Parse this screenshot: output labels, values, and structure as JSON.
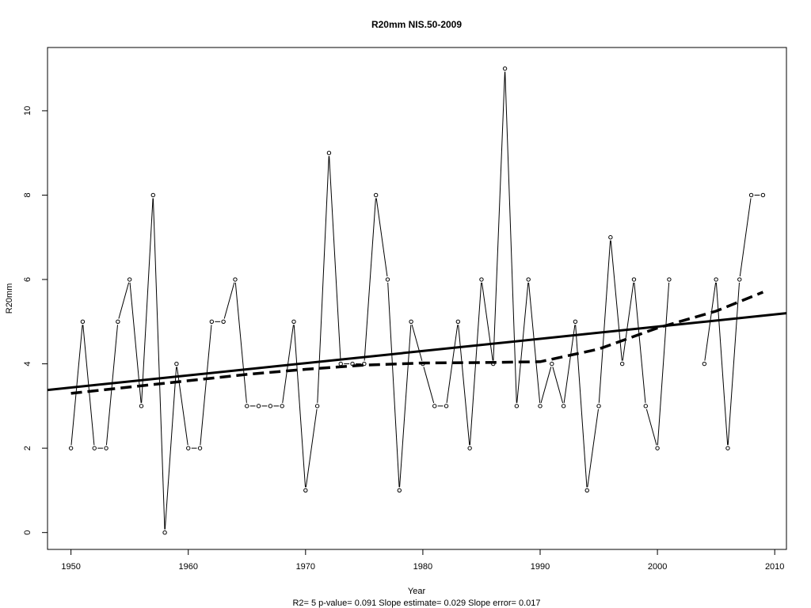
{
  "chart_data": {
    "type": "line",
    "title": "R20mm    NIS.50-2009",
    "xlabel": "Year",
    "ylabel": "R20mm",
    "footer": "R2= 5  p-value= 0.091  Slope estimate= 0.029  Slope error= 0.017",
    "xlim": [
      1948,
      2011
    ],
    "ylim": [
      -0.4,
      11.5
    ],
    "x_ticks": [
      1950,
      1960,
      1970,
      1980,
      1990,
      2000,
      2010
    ],
    "y_ticks": [
      0,
      2,
      4,
      6,
      8,
      10
    ],
    "grid": false,
    "series": [
      {
        "style": "line-with-points",
        "x": [
          1950,
          1951,
          1952,
          1953,
          1954,
          1955,
          1956,
          1957,
          1958,
          1959,
          1960,
          1961,
          1962,
          1963,
          1964,
          1965,
          1966,
          1967,
          1968,
          1969,
          1970,
          1971,
          1972,
          1973,
          1974,
          1975,
          1976,
          1977,
          1978,
          1979,
          1980,
          1981,
          1982,
          1983,
          1984,
          1985,
          1986,
          1987,
          1988,
          1989,
          1990,
          1991,
          1992,
          1993,
          1994,
          1995,
          1996,
          1997,
          1998,
          1999,
          2000,
          2001,
          2002,
          2003,
          2004,
          2005,
          2006,
          2007,
          2008,
          2009
        ],
        "y": [
          2,
          5,
          2,
          2,
          5,
          6,
          3,
          8,
          0,
          4,
          2,
          2,
          5,
          5,
          6,
          3,
          3,
          3,
          3,
          5,
          1,
          3,
          9,
          4,
          4,
          4,
          8,
          6,
          1,
          5,
          4,
          3,
          3,
          5,
          2,
          6,
          4,
          11,
          3,
          6,
          3,
          4,
          3,
          5,
          1,
          3,
          7,
          4,
          6,
          3,
          2,
          6,
          null,
          null,
          4,
          6,
          2,
          6,
          8,
          8
        ]
      },
      {
        "style": "trend-linear",
        "x": [
          1948,
          2011
        ],
        "y": [
          3.38,
          5.2
        ]
      },
      {
        "style": "trend-smooth-dashed",
        "x": [
          1950,
          1955,
          1960,
          1965,
          1970,
          1975,
          1980,
          1985,
          1990,
          1995,
          2000,
          2005,
          2009
        ],
        "y": [
          3.3,
          3.45,
          3.6,
          3.75,
          3.87,
          3.97,
          4.02,
          4.03,
          4.05,
          4.35,
          4.85,
          5.25,
          5.7
        ]
      }
    ]
  }
}
